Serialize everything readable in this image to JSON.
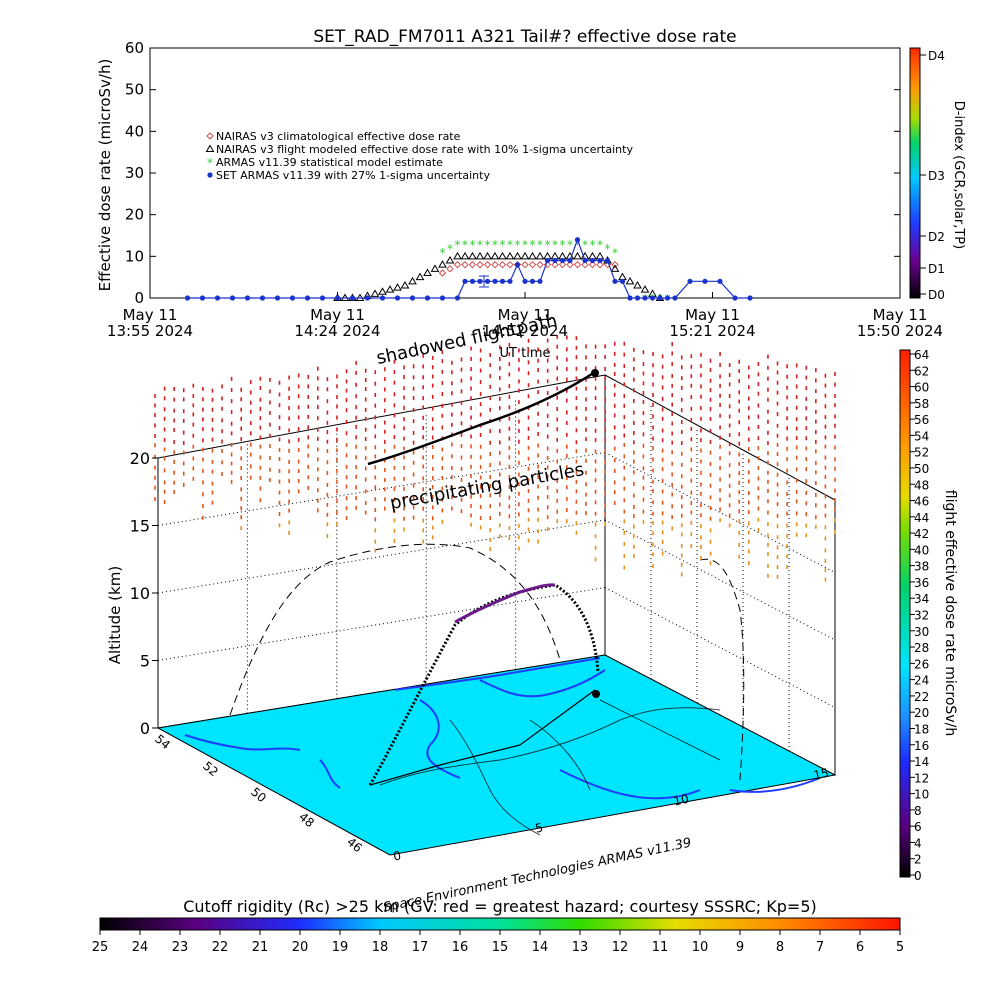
{
  "figure": {
    "title": "SET_RAD_FM7011  A321 Tail#? effective dose rate",
    "credit": "Space Environment Technologies ARMAS v11.39"
  },
  "chart_data": [
    {
      "type": "scatter",
      "title": "SET_RAD_FM7011  A321 Tail#? effective dose rate",
      "xlabel": "UT time",
      "ylabel": "Effective dose rate (microSv/h)",
      "ylim": [
        0,
        60
      ],
      "yticks": [
        0,
        10,
        20,
        30,
        40,
        50,
        60
      ],
      "xtick_labels": [
        [
          "May 11",
          "13:55 2024"
        ],
        [
          "May 11",
          "14:24 2024"
        ],
        [
          "May 11",
          "14:52 2024"
        ],
        [
          "May 11",
          "15:21 2024"
        ],
        [
          "May 11",
          "15:50 2024"
        ]
      ],
      "legend_placement": "upper-left",
      "series": [
        {
          "name": "NAIRAS v3 climatological effective dose rate",
          "marker": "diamond",
          "color": "#d24a4a",
          "x": [
            0.39,
            0.4,
            0.41,
            0.42,
            0.43,
            0.44,
            0.45,
            0.46,
            0.47,
            0.48,
            0.49,
            0.5,
            0.51,
            0.52,
            0.53,
            0.54,
            0.55,
            0.56,
            0.57,
            0.58,
            0.59,
            0.6,
            0.61,
            0.62
          ],
          "y": [
            6,
            7,
            8,
            8,
            8,
            8,
            8,
            8,
            8,
            8,
            8,
            8,
            8,
            8,
            8,
            8,
            8,
            8,
            8,
            8,
            8,
            8,
            8,
            8
          ]
        },
        {
          "name": "NAIRAS v3 flight modeled effective dose rate with 10% 1-sigma uncertainty",
          "marker": "triangle",
          "color": "#000000",
          "x": [
            0.25,
            0.26,
            0.27,
            0.28,
            0.29,
            0.3,
            0.31,
            0.32,
            0.33,
            0.34,
            0.35,
            0.36,
            0.37,
            0.38,
            0.39,
            0.4,
            0.41,
            0.42,
            0.43,
            0.44,
            0.45,
            0.46,
            0.47,
            0.48,
            0.49,
            0.5,
            0.51,
            0.52,
            0.53,
            0.54,
            0.55,
            0.56,
            0.57,
            0.58,
            0.59,
            0.6,
            0.61,
            0.62,
            0.63,
            0.64,
            0.65,
            0.66,
            0.67,
            0.68
          ],
          "y": [
            0,
            0,
            0,
            0,
            0.5,
            1,
            1.5,
            2,
            2.5,
            3,
            4,
            5,
            6,
            7,
            8,
            9,
            10,
            10,
            10,
            10,
            10,
            10,
            10,
            10,
            10,
            10,
            10,
            10,
            10,
            10,
            10,
            10,
            10,
            10,
            10,
            10,
            9,
            7,
            5,
            4,
            3,
            2,
            1,
            0
          ]
        },
        {
          "name": "ARMAS v11.39 statistical model estimate",
          "marker": "asterisk",
          "color": "#33cc33",
          "x": [
            0.39,
            0.4,
            0.41,
            0.42,
            0.43,
            0.44,
            0.45,
            0.46,
            0.47,
            0.48,
            0.49,
            0.5,
            0.51,
            0.52,
            0.53,
            0.54,
            0.55,
            0.56,
            0.57,
            0.58,
            0.59,
            0.6,
            0.61,
            0.62,
            0.66,
            0.67,
            0.68,
            0.69
          ],
          "y": [
            11,
            12,
            13,
            13,
            13,
            13,
            13,
            13,
            13,
            13,
            13,
            13,
            13,
            13,
            13,
            13,
            13,
            13,
            13,
            13,
            13,
            13,
            12,
            11,
            0,
            0,
            0,
            0
          ]
        },
        {
          "name": "SET ARMAS v11.39 with 27% 1-sigma uncertainty",
          "marker": "dot",
          "color": "#1a33cc",
          "x": [
            0.05,
            0.07,
            0.09,
            0.11,
            0.13,
            0.15,
            0.17,
            0.19,
            0.21,
            0.23,
            0.25,
            0.27,
            0.29,
            0.31,
            0.33,
            0.35,
            0.37,
            0.39,
            0.41,
            0.42,
            0.43,
            0.44,
            0.45,
            0.46,
            0.47,
            0.48,
            0.49,
            0.5,
            0.51,
            0.52,
            0.53,
            0.54,
            0.55,
            0.56,
            0.57,
            0.58,
            0.59,
            0.6,
            0.61,
            0.62,
            0.63,
            0.64,
            0.65,
            0.66,
            0.67,
            0.68,
            0.69,
            0.7,
            0.72,
            0.74,
            0.76,
            0.78,
            0.8
          ],
          "y": [
            0,
            0,
            0,
            0,
            0,
            0,
            0,
            0,
            0,
            0,
            0,
            0,
            0,
            0,
            0,
            0,
            0,
            0,
            0,
            4,
            4,
            4,
            4,
            4,
            4,
            4,
            8,
            4,
            4,
            4,
            9,
            9,
            9,
            9,
            14,
            9,
            9,
            9,
            9,
            4,
            4,
            0,
            0,
            0,
            0,
            0,
            0,
            0,
            4,
            4,
            4,
            0,
            0
          ]
        }
      ],
      "secondary_axis": {
        "label": "D-index (GCR,solar,TP)",
        "ticks": [
          "D0",
          "D1",
          "D2",
          "D3",
          "D4"
        ]
      }
    },
    {
      "type": "scatter",
      "subtype": "3d-flight-path",
      "zlabel": "Altitude (km)",
      "zticks": [
        0,
        5,
        10,
        15,
        20
      ],
      "x_ticks": [
        "0",
        "5",
        "10",
        "15"
      ],
      "y_ticks": [
        "54",
        "52",
        "50",
        "48",
        "46"
      ],
      "annotations": [
        "shadowed flightpath",
        "precipitating particles"
      ],
      "colorbar": {
        "label": "flight effective dose rate microSv/h",
        "ticks": [
          "0",
          "2",
          "4",
          "6",
          "8",
          "10",
          "12",
          "14",
          "16",
          "18",
          "20",
          "22",
          "24",
          "26",
          "28",
          "30",
          "32",
          "34",
          "36",
          "38",
          "40",
          "42",
          "44",
          "46",
          "48",
          "50",
          "52",
          "54",
          "56",
          "58",
          "60",
          "62",
          "64"
        ]
      },
      "bottom_colorbar": {
        "label": "Cutoff rigidity (Rc) >25 km (GV: red = greatest hazard; courtesy SSSRC; Kp=5)",
        "ticks": [
          "25",
          "24",
          "23",
          "22",
          "21",
          "20",
          "19",
          "18",
          "17",
          "16",
          "15",
          "14",
          "13",
          "12",
          "11",
          "10",
          "9",
          "8",
          "7",
          "6",
          "5"
        ]
      },
      "colors": {
        "map_water": "#00e5ff",
        "land_contour": "#1e3cff",
        "particles_high": "#d22020",
        "particles_low": "#e6781e"
      }
    }
  ]
}
